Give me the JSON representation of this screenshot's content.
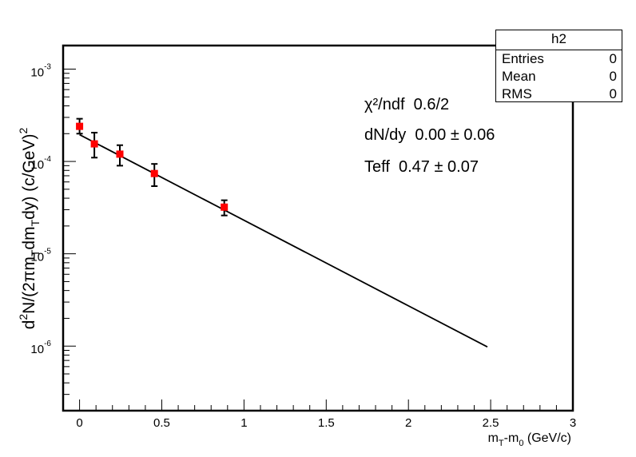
{
  "chart_data": {
    "type": "scatter",
    "title": "",
    "xlabel": "m_T-m_0 (GeV/c)",
    "ylabel": "d²N/(2πm_Tdm_Tdy) (c/GeV)²",
    "xlim": [
      -0.1,
      3.0
    ],
    "ylim": [
      2e-07,
      0.0018
    ],
    "yscale": "log",
    "grid": false,
    "x_ticks": [
      0,
      0.5,
      1,
      1.5,
      2,
      2.5,
      3
    ],
    "x_tick_labels": [
      "0",
      "0.5",
      "1",
      "1.5",
      "2",
      "2.5",
      "3"
    ],
    "y_ticks": [
      1e-06,
      1e-05,
      0.0001,
      0.001
    ],
    "y_tick_labels": [
      {
        "base": "10",
        "exp": "-6"
      },
      {
        "base": "10",
        "exp": "-5"
      },
      {
        "base": "10",
        "exp": "-4"
      },
      {
        "base": "10",
        "exp": "-3"
      }
    ],
    "series": [
      {
        "kind": "points-with-errors",
        "color": "#ff0000",
        "x": [
          0.0,
          0.09,
          0.245,
          0.455,
          0.88
        ],
        "y": [
          0.00024,
          0.000155,
          0.00012,
          7.4e-05,
          3.2e-05
        ],
        "y_err_low": [
          4e-05,
          4.5e-05,
          3e-05,
          2e-05,
          6e-06
        ],
        "y_err_high": [
          5e-05,
          5e-05,
          3e-05,
          2e-05,
          6e-06
        ]
      },
      {
        "kind": "fit-line",
        "color": "#000000",
        "x": [
          0.0,
          2.48
        ],
        "y": [
          0.000195,
          9.8e-07
        ]
      }
    ]
  },
  "stats_box": {
    "title": "h2",
    "rows": [
      {
        "label": "Entries",
        "value": "0"
      },
      {
        "label": "Mean",
        "value": "0"
      },
      {
        "label": "RMS",
        "value": "0"
      }
    ]
  },
  "fit_results": {
    "chi2_label": "χ²/ndf",
    "chi2_value": "0.6/2",
    "dndy_label": "dN/dy",
    "dndy_value": "0.00",
    "dndy_err": "0.06",
    "teff_label": "Teff",
    "teff_value": "0.47",
    "teff_err": "0.07",
    "pm": "±"
  }
}
